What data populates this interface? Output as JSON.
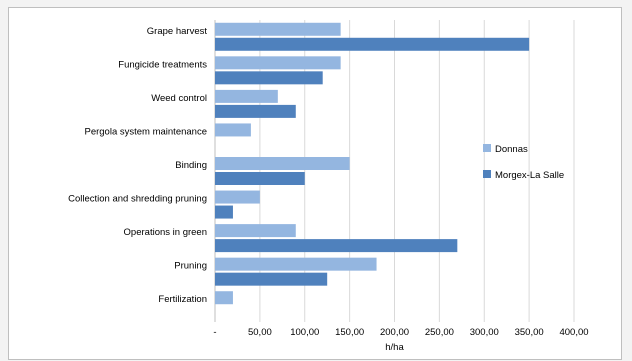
{
  "chart_data": {
    "type": "bar",
    "orientation": "horizontal",
    "categories": [
      "Grape harvest",
      "Fungicide treatments",
      "Weed control",
      "Pergola system maintenance",
      "Binding",
      "Collection and shredding pruning",
      "Operations in green",
      "Pruning",
      "Fertilization"
    ],
    "series": [
      {
        "name": "Donnas",
        "color": "#94b6e0",
        "values": [
          140,
          140,
          70,
          40,
          150,
          50,
          90,
          180,
          20
        ]
      },
      {
        "name": "Morgex-La Salle",
        "color": "#4f81bd",
        "values": [
          350,
          120,
          90,
          null,
          100,
          20,
          270,
          125,
          null
        ]
      }
    ],
    "xlabel": "h/ha",
    "ylabel": "",
    "xlim": [
      0,
      400
    ],
    "x_ticks": [
      "-",
      "50,00",
      "100,00",
      "150,00",
      "200,00",
      "250,00",
      "300,00",
      "350,00",
      "400,00"
    ],
    "grid": true,
    "legend_position": "right"
  }
}
